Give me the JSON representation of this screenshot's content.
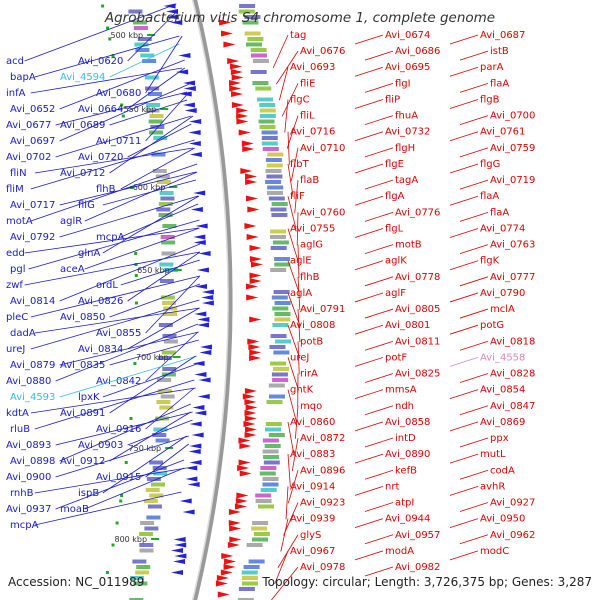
{
  "title": "Agrobacterium vitis S4 chromosome 1, complete genome",
  "footer": {
    "accession": "Accession: NC_011989",
    "summary": "Topology: circular; Length: 3,726,375 bp; Genes: 3,287"
  },
  "colors": {
    "left_labels": "#1a1acc",
    "right_labels": "#dd0000",
    "highlight_cyan": "#33bbee",
    "highlight_pink": "#dd88bb",
    "backbone": "#999999"
  },
  "scale_ticks": [
    "500 kbp",
    "550 kbp",
    "600 kbp",
    "650 kbp",
    "700 kbp",
    "750 kbp",
    "800 kbp"
  ],
  "left_labels": [
    "acd",
    "Avi_0620",
    "bapA",
    "Avi_4594",
    "infA",
    "Avi_0680",
    "Avi_0652",
    "Avi_0664",
    "Avi_0677",
    "Avi_0689",
    "Avi_0697",
    "Avi_0711",
    "Avi_0702",
    "Avi_0720",
    "fliN",
    "Avi_0712",
    "fliM",
    "flhB",
    "Avi_0717",
    "fliG",
    "motA",
    "aglR",
    "Avi_0792",
    "mcpA",
    "edd",
    "glnA",
    "pgl",
    "aceA",
    "zwf",
    "ordL",
    "Avi_0814",
    "Avi_0826",
    "pleC",
    "Avi_0850",
    "dadA",
    "Avi_0855",
    "ureJ",
    "Avi_0834",
    "Avi_0879",
    "Avi_0835",
    "Avi_0880",
    "Avi_0842",
    "Avi_4593",
    "lpxK",
    "kdtA",
    "Avi_0891",
    "rluB",
    "Avi_0916",
    "Avi_0893",
    "Avi_0903",
    "Avi_0898",
    "Avi_0912",
    "Avi_0900",
    "Avi_0915",
    "rnhB",
    "ispB",
    "Avi_0937",
    "moaB",
    "mcpA"
  ],
  "right_labels": [
    "tag",
    "Avi_0674",
    "Avi_0687",
    "Avi_0676",
    "Avi_0686",
    "istB",
    "Avi_0693",
    "Avi_0695",
    "parA",
    "fliE",
    "flgI",
    "flaA",
    "flgC",
    "fliP",
    "flgB",
    "fliL",
    "fhuA",
    "Avi_0700",
    "Avi_0716",
    "Avi_0732",
    "Avi_0761",
    "Avi_0710",
    "flgH",
    "Avi_0759",
    "flbT",
    "flgE",
    "flgG",
    "flaB",
    "tagA",
    "Avi_0719",
    "fliF",
    "flgA",
    "flaA",
    "Avi_0760",
    "Avi_0776",
    "flaA",
    "Avi_0755",
    "flgL",
    "Avi_0774",
    "aglG",
    "motB",
    "Avi_0763",
    "aglE",
    "aglK",
    "flgK",
    "flhB",
    "Avi_0778",
    "Avi_0777",
    "aglA",
    "aglF",
    "Avi_0790",
    "Avi_0791",
    "Avi_0805",
    "mclA",
    "Avi_0808",
    "Avi_0801",
    "potG",
    "potB",
    "Avi_0811",
    "Avi_0818",
    "ureJ",
    "potF",
    "Avi_4558",
    "rirA",
    "Avi_0825",
    "Avi_0828",
    "gntK",
    "mmsA",
    "Avi_0854",
    "mqo",
    "ndh",
    "Avi_0847",
    "Avi_0860",
    "Avi_0858",
    "Avi_0869",
    "Avi_0872",
    "intD",
    "ppx",
    "Avi_0883",
    "Avi_0890",
    "mutL",
    "Avi_0896",
    "kefB",
    "codA",
    "Avi_0914",
    "nrt",
    "avhR",
    "Avi_0923",
    "atpI",
    "Avi_0927",
    "Avi_0939",
    "Avi_0944",
    "Avi_0950",
    "glyS",
    "Avi_0957",
    "Avi_0962",
    "Avi_0967",
    "modA",
    "modC",
    "Avi_0978",
    "Avi_0982"
  ]
}
